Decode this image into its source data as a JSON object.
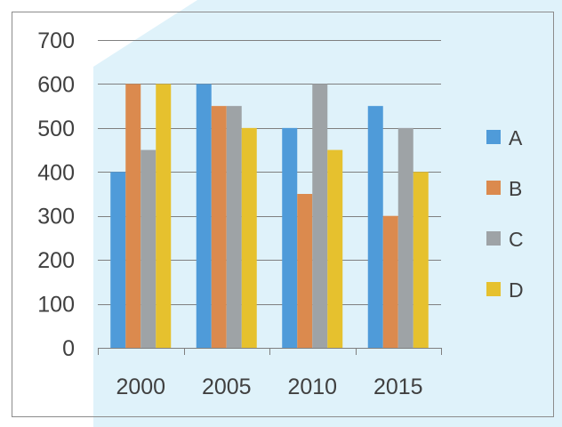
{
  "chart_data": {
    "type": "bar",
    "categories": [
      "2000",
      "2005",
      "2010",
      "2015"
    ],
    "series": [
      {
        "name": "A",
        "values": [
          400,
          600,
          500,
          550
        ]
      },
      {
        "name": "B",
        "values": [
          600,
          550,
          350,
          300
        ]
      },
      {
        "name": "C",
        "values": [
          450,
          550,
          600,
          500
        ]
      },
      {
        "name": "D",
        "values": [
          600,
          500,
          450,
          400
        ]
      }
    ],
    "ylim": [
      0,
      700
    ],
    "yticks": [
      "0",
      "100",
      "200",
      "300",
      "400",
      "500",
      "600",
      "700"
    ],
    "grid": true,
    "legend_position": "right"
  },
  "colors": {
    "series": [
      "#4F9BD9",
      "#DB8A4E",
      "#9EA3A6",
      "#E6C12E"
    ],
    "background_panel": "#DFF2FA",
    "gridline": "#7F7F7F",
    "frame": "#8C8C8C"
  }
}
